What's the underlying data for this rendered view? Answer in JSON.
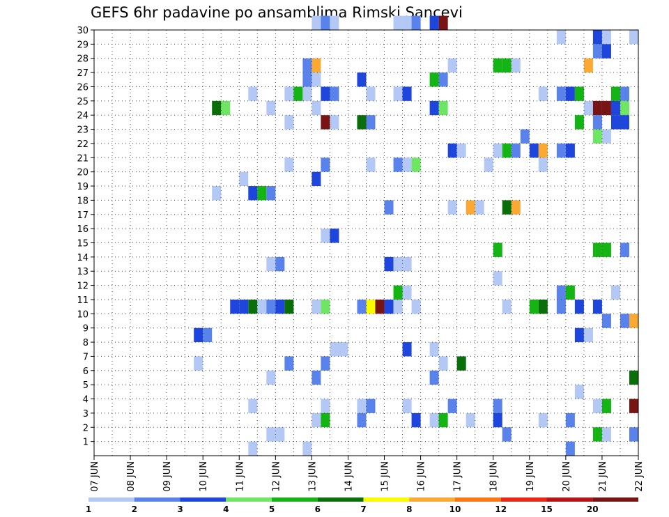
{
  "chart_data": {
    "type": "heatmap",
    "title": "GEFS 6hr padavine po ansamblima Rimski Sancevi",
    "xlabel": "",
    "ylabel": "",
    "x_ticks": [
      "07 JUN",
      "08 JUN",
      "09 JUN",
      "10 JUN",
      "11 JUN",
      "12 JUN",
      "13 JUN",
      "14 JUN",
      "15 JUN",
      "16 JUN",
      "17 JUN",
      "18 JUN",
      "19 JUN",
      "20 JUN",
      "21 JUN",
      "22 JUN"
    ],
    "y_ticks": [
      1,
      2,
      3,
      4,
      5,
      6,
      7,
      8,
      9,
      10,
      11,
      12,
      13,
      14,
      15,
      16,
      17,
      18,
      19,
      20,
      21,
      22,
      23,
      24,
      25,
      26,
      27,
      28,
      29,
      30
    ],
    "xlim": [
      0,
      60
    ],
    "ylim": [
      0,
      30
    ],
    "time_step_hours": 6,
    "grid": true,
    "legend_position": "bottom",
    "colorbar": {
      "labels": [
        "1",
        "2",
        "3",
        "4",
        "5",
        "6",
        "7",
        "8",
        "10",
        "12",
        "15",
        "20"
      ],
      "colors": [
        "#b4c8f5",
        "#5a82eb",
        "#1e46dc",
        "#6ee664",
        "#14b414",
        "#0a6e0a",
        "#fafa00",
        "#faaa32",
        "#fa7814",
        "#e62814",
        "#b41414",
        "#781414"
      ]
    },
    "cells": [
      [
        24,
        30,
        0
      ],
      [
        25,
        30,
        1
      ],
      [
        26,
        30,
        0
      ],
      [
        33,
        30,
        0
      ],
      [
        34,
        30,
        0
      ],
      [
        35,
        30,
        1
      ],
      [
        37,
        30,
        2
      ],
      [
        38,
        30,
        11
      ],
      [
        51,
        29,
        0
      ],
      [
        55,
        29,
        2
      ],
      [
        56,
        29,
        0
      ],
      [
        59,
        29,
        0
      ],
      [
        55,
        28,
        1
      ],
      [
        56,
        28,
        2
      ],
      [
        23,
        27,
        1
      ],
      [
        24,
        27,
        7
      ],
      [
        39,
        27,
        0
      ],
      [
        44,
        27,
        4
      ],
      [
        45,
        27,
        4
      ],
      [
        46,
        27,
        0
      ],
      [
        54,
        27,
        7
      ],
      [
        23,
        26,
        1
      ],
      [
        24,
        26,
        0
      ],
      [
        29,
        26,
        2
      ],
      [
        37,
        26,
        4
      ],
      [
        38,
        26,
        1
      ],
      [
        17,
        25,
        0
      ],
      [
        21,
        25,
        0
      ],
      [
        22,
        25,
        4
      ],
      [
        23,
        25,
        0
      ],
      [
        25,
        25,
        2
      ],
      [
        26,
        25,
        1
      ],
      [
        30,
        25,
        0
      ],
      [
        33,
        25,
        0
      ],
      [
        34,
        25,
        2
      ],
      [
        49,
        25,
        0
      ],
      [
        51,
        25,
        1
      ],
      [
        52,
        25,
        2
      ],
      [
        53,
        25,
        4
      ],
      [
        57,
        25,
        4
      ],
      [
        58,
        25,
        1
      ],
      [
        13,
        24,
        5
      ],
      [
        14,
        24,
        3
      ],
      [
        19,
        24,
        0
      ],
      [
        24,
        24,
        0
      ],
      [
        37,
        24,
        2
      ],
      [
        38,
        24,
        3
      ],
      [
        54,
        24,
        0
      ],
      [
        55,
        24,
        11
      ],
      [
        56,
        24,
        11
      ],
      [
        57,
        24,
        2
      ],
      [
        58,
        24,
        3
      ],
      [
        21,
        23,
        0
      ],
      [
        25,
        23,
        11
      ],
      [
        26,
        23,
        0
      ],
      [
        29,
        23,
        5
      ],
      [
        30,
        23,
        1
      ],
      [
        53,
        23,
        4
      ],
      [
        55,
        23,
        1
      ],
      [
        57,
        23,
        2
      ],
      [
        58,
        23,
        2
      ],
      [
        47,
        22,
        1
      ],
      [
        55,
        22,
        3
      ],
      [
        56,
        22,
        0
      ],
      [
        39,
        21,
        2
      ],
      [
        40,
        21,
        0
      ],
      [
        44,
        21,
        0
      ],
      [
        45,
        21,
        4
      ],
      [
        46,
        21,
        1
      ],
      [
        48,
        21,
        2
      ],
      [
        49,
        21,
        7
      ],
      [
        51,
        21,
        1
      ],
      [
        52,
        21,
        2
      ],
      [
        21,
        20,
        0
      ],
      [
        25,
        20,
        1
      ],
      [
        30,
        20,
        0
      ],
      [
        33,
        20,
        1
      ],
      [
        34,
        20,
        0
      ],
      [
        35,
        20,
        3
      ],
      [
        43,
        20,
        0
      ],
      [
        49,
        20,
        0
      ],
      [
        16,
        19,
        0
      ],
      [
        24,
        19,
        2
      ],
      [
        13,
        18,
        0
      ],
      [
        17,
        18,
        2
      ],
      [
        18,
        18,
        4
      ],
      [
        19,
        18,
        1
      ],
      [
        32,
        17,
        1
      ],
      [
        39,
        17,
        0
      ],
      [
        41,
        17,
        7
      ],
      [
        42,
        17,
        0
      ],
      [
        45,
        17,
        5
      ],
      [
        46,
        17,
        7
      ],
      [
        25,
        15,
        0
      ],
      [
        26,
        15,
        2
      ],
      [
        44,
        14,
        4
      ],
      [
        55,
        14,
        4
      ],
      [
        56,
        14,
        4
      ],
      [
        58,
        14,
        1
      ],
      [
        19,
        13,
        0
      ],
      [
        20,
        13,
        1
      ],
      [
        32,
        13,
        2
      ],
      [
        33,
        13,
        0
      ],
      [
        34,
        13,
        0
      ],
      [
        44,
        12,
        0
      ],
      [
        33,
        11,
        4
      ],
      [
        34,
        11,
        0
      ],
      [
        51,
        11,
        1
      ],
      [
        52,
        11,
        4
      ],
      [
        57,
        11,
        0
      ],
      [
        15,
        10,
        2
      ],
      [
        16,
        10,
        2
      ],
      [
        17,
        10,
        5
      ],
      [
        18,
        10,
        0
      ],
      [
        19,
        10,
        1
      ],
      [
        20,
        10,
        2
      ],
      [
        21,
        10,
        5
      ],
      [
        24,
        10,
        0
      ],
      [
        25,
        10,
        3
      ],
      [
        29,
        10,
        1
      ],
      [
        30,
        10,
        6
      ],
      [
        31,
        10,
        11
      ],
      [
        32,
        10,
        2
      ],
      [
        33,
        10,
        0
      ],
      [
        35,
        10,
        0
      ],
      [
        45,
        10,
        0
      ],
      [
        48,
        10,
        4
      ],
      [
        49,
        10,
        5
      ],
      [
        51,
        10,
        1
      ],
      [
        53,
        10,
        2
      ],
      [
        55,
        10,
        2
      ],
      [
        56,
        9,
        1
      ],
      [
        58,
        9,
        1
      ],
      [
        59,
        9,
        7
      ],
      [
        11,
        8,
        2
      ],
      [
        12,
        8,
        1
      ],
      [
        53,
        8,
        2
      ],
      [
        54,
        8,
        0
      ],
      [
        26,
        7,
        0
      ],
      [
        27,
        7,
        0
      ],
      [
        34,
        7,
        2
      ],
      [
        37,
        7,
        0
      ],
      [
        11,
        6,
        0
      ],
      [
        21,
        6,
        1
      ],
      [
        25,
        6,
        1
      ],
      [
        38,
        6,
        0
      ],
      [
        40,
        6,
        5
      ],
      [
        19,
        5,
        0
      ],
      [
        24,
        5,
        1
      ],
      [
        37,
        5,
        1
      ],
      [
        59,
        5,
        5
      ],
      [
        53,
        4,
        0
      ],
      [
        17,
        3,
        0
      ],
      [
        25,
        3,
        0
      ],
      [
        29,
        3,
        0
      ],
      [
        30,
        3,
        1
      ],
      [
        34,
        3,
        0
      ],
      [
        39,
        3,
        1
      ],
      [
        44,
        3,
        1
      ],
      [
        55,
        3,
        0
      ],
      [
        56,
        3,
        4
      ],
      [
        59,
        3,
        11
      ],
      [
        24,
        2,
        0
      ],
      [
        25,
        2,
        4
      ],
      [
        29,
        2,
        1
      ],
      [
        35,
        2,
        2
      ],
      [
        37,
        2,
        0
      ],
      [
        38,
        2,
        4
      ],
      [
        41,
        2,
        0
      ],
      [
        44,
        2,
        2
      ],
      [
        49,
        2,
        0
      ],
      [
        52,
        2,
        1
      ],
      [
        19,
        1,
        0
      ],
      [
        20,
        1,
        0
      ],
      [
        45,
        1,
        1
      ],
      [
        55,
        1,
        4
      ],
      [
        56,
        1,
        0
      ],
      [
        59,
        1,
        1
      ],
      [
        17,
        0,
        0
      ],
      [
        23,
        0,
        0
      ],
      [
        52,
        0,
        1
      ]
    ]
  }
}
